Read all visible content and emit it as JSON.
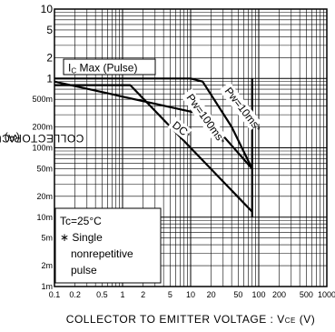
{
  "chart_data": {
    "type": "line",
    "xscale": "log",
    "yscale": "log",
    "xlim": [
      0.1,
      1000
    ],
    "ylim": [
      0.001,
      10
    ],
    "xlabel": "COLLECTOR TO EMITTER VOLTAGE : V",
    "xlabel_sub": "CE",
    "xlabel_unit": " (V)",
    "ylabel": "COLLECTOR CURRENT : I",
    "ylabel_sub": "C",
    "ylabel_unit": " (A)",
    "x_ticks": [
      {
        "value": 0.1,
        "label": "0.1"
      },
      {
        "value": 0.2,
        "label": "0.2"
      },
      {
        "value": 0.5,
        "label": "0.5"
      },
      {
        "value": 1,
        "label": "1"
      },
      {
        "value": 2,
        "label": "2"
      },
      {
        "value": 5,
        "label": "5"
      },
      {
        "value": 10,
        "label": "10"
      },
      {
        "value": 20,
        "label": "20"
      },
      {
        "value": 50,
        "label": "50"
      },
      {
        "value": 100,
        "label": "100"
      },
      {
        "value": 200,
        "label": "200"
      },
      {
        "value": 500,
        "label": "500"
      },
      {
        "value": 1000,
        "label": "1000"
      }
    ],
    "y_ticks": [
      {
        "value": 0.001,
        "label": "1m"
      },
      {
        "value": 0.002,
        "label": "2m"
      },
      {
        "value": 0.005,
        "label": "5m"
      },
      {
        "value": 0.01,
        "label": "10m"
      },
      {
        "value": 0.02,
        "label": "20m"
      },
      {
        "value": 0.05,
        "label": "50m"
      },
      {
        "value": 0.1,
        "label": "100m"
      },
      {
        "value": 0.2,
        "label": "200m"
      },
      {
        "value": 0.5,
        "label": "500m"
      },
      {
        "value": 1,
        "label": "1"
      },
      {
        "value": 2,
        "label": "2"
      },
      {
        "value": 5,
        "label": "5"
      },
      {
        "value": 10,
        "label": "10"
      }
    ],
    "series": [
      {
        "name": "Pw=10ms",
        "label_suffix": "*",
        "points": [
          [
            0.1,
            1
          ],
          [
            10,
            1
          ],
          [
            15,
            0.9
          ],
          [
            40,
            0.2
          ],
          [
            80,
            0.05
          ]
        ]
      },
      {
        "name": "Pw=100ms",
        "label_suffix": "*",
        "points": [
          [
            0.1,
            0.9
          ],
          [
            16,
            0.3
          ],
          [
            80,
            0.05
          ]
        ]
      },
      {
        "name": "DC",
        "label_suffix": "*",
        "points": [
          [
            0.1,
            0.8
          ],
          [
            1.3,
            0.8
          ],
          [
            80,
            0.012
          ]
        ]
      }
    ],
    "boundary": {
      "x": 80,
      "y_range": [
        0.01,
        1
      ]
    },
    "annotations": {
      "ic_max": "I",
      "ic_max_sub": "C",
      "ic_max_rest": " Max (Pulse)",
      "legend_line1": "Tc=25°C",
      "legend_line2": "∗ Single",
      "legend_line3": "nonrepetitive",
      "legend_line4": "pulse"
    },
    "grid": "on"
  }
}
